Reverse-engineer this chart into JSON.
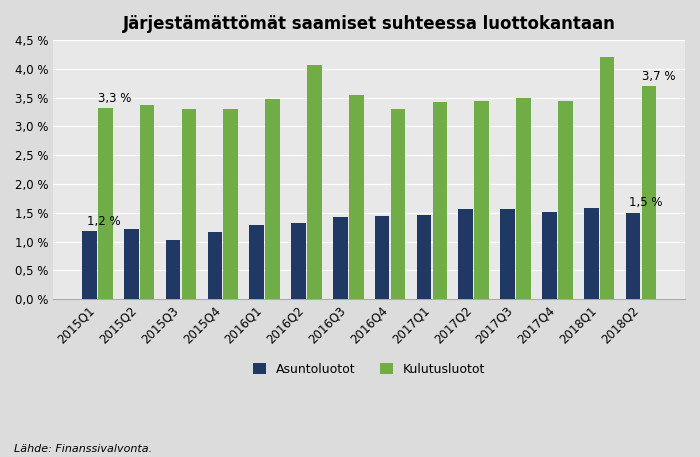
{
  "title": "Järjestämättömät saamiset suhteessa luottokantaan",
  "categories": [
    "2015Q1",
    "2015Q2",
    "2015Q3",
    "2015Q4",
    "2016Q1",
    "2016Q2",
    "2016Q3",
    "2016Q4",
    "2017Q1",
    "2017Q2",
    "2017Q3",
    "2017Q4",
    "2018Q1",
    "2018Q2"
  ],
  "asuntoluotot": [
    1.18,
    1.22,
    1.02,
    1.17,
    1.28,
    1.33,
    1.42,
    1.44,
    1.46,
    1.56,
    1.56,
    1.52,
    1.58,
    1.5
  ],
  "kulutusluotot": [
    3.32,
    3.38,
    3.3,
    3.3,
    3.48,
    4.07,
    3.55,
    3.3,
    3.42,
    3.45,
    3.5,
    3.45,
    4.2,
    3.7
  ],
  "bar_color_asunto": "#1F3864",
  "bar_color_kulutus": "#70AD47",
  "label_asunto": "Asuntoluotot",
  "label_kulutus": "Kulutusluotot",
  "ylim": [
    0,
    4.5
  ],
  "yticks": [
    0.0,
    0.5,
    1.0,
    1.5,
    2.0,
    2.5,
    3.0,
    3.5,
    4.0,
    4.5
  ],
  "source_text": "Lähde: Finanssivalvonta.",
  "annotation_first_asunto": "1,2 %",
  "annotation_first_kulutus": "3,3 %",
  "annotation_last_asunto": "1,5 %",
  "annotation_last_kulutus": "3,7 %",
  "background_color": "#DCDCDC",
  "plot_bg_color": "#E8E8E8",
  "grid_color": "#FFFFFF",
  "title_fontsize": 12,
  "tick_fontsize": 8.5,
  "legend_fontsize": 9,
  "source_fontsize": 8,
  "bar_width": 0.35,
  "bar_gap": 0.03
}
